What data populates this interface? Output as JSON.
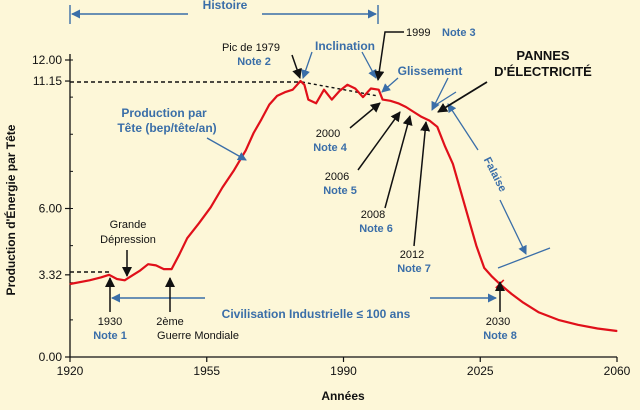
{
  "chart_data": {
    "type": "line",
    "xlabel": "Années",
    "ylabel": "Production d'Énergie par Tête",
    "xlim": [
      1920,
      2060
    ],
    "ylim": [
      0,
      12
    ],
    "x_ticks": [
      1920,
      1955,
      1990,
      2025,
      2060
    ],
    "y_ticks": [
      0,
      3.32,
      6.0,
      11.15,
      12.0
    ],
    "y_tick_labels": [
      "0.00",
      "3.32",
      "6.00",
      "11.15",
      "12.00"
    ],
    "x_tick_labels": [
      "1920",
      "1955",
      "1990",
      "2025",
      "2060"
    ],
    "colors": {
      "curve": "#e0101a",
      "annotation": "#3a6ea8",
      "background": "#fdf7d8"
    },
    "series": [
      {
        "x": [
          1920,
          1925,
          1928,
          1930,
          1932,
          1934,
          1936,
          1938,
          1940,
          1942,
          1944,
          1946,
          1948,
          1950,
          1953,
          1956,
          1959,
          1962,
          1965,
          1967,
          1969,
          1971,
          1973,
          1975,
          1977,
          1979,
          1980,
          1981,
          1983,
          1985,
          1987,
          1989,
          1991,
          1993,
          1995,
          1997,
          1999,
          2000,
          2002,
          2004,
          2006,
          2008,
          2010,
          2012,
          2014,
          2016,
          2018,
          2020,
          2022,
          2024,
          2026,
          2028,
          2030,
          2033,
          2036,
          2040,
          2045,
          2050,
          2055,
          2060
        ],
        "y": [
          2.95,
          3.1,
          3.22,
          3.32,
          3.15,
          3.1,
          3.3,
          3.5,
          3.75,
          3.7,
          3.55,
          3.55,
          4.15,
          4.8,
          5.4,
          6.05,
          6.85,
          7.55,
          8.35,
          9.05,
          9.6,
          10.2,
          10.55,
          10.7,
          10.8,
          11.15,
          11.0,
          10.4,
          10.25,
          10.8,
          10.4,
          10.75,
          11.0,
          10.85,
          10.5,
          10.85,
          10.8,
          10.4,
          10.35,
          10.25,
          10.1,
          9.9,
          9.7,
          9.55,
          9.3,
          8.5,
          7.8,
          6.7,
          5.6,
          4.5,
          3.6,
          3.25,
          2.95,
          2.55,
          2.2,
          1.8,
          1.5,
          1.3,
          1.15,
          1.05
        ]
      }
    ],
    "annotations": {
      "histoire": "Histoire",
      "inclination": "Inclination",
      "glissement": "Glissement",
      "falaise": "Falaise",
      "pannes_1": "PANNES",
      "pannes_2": "D'ÉLECTRICITÉ",
      "pic_1": "Pic de 1979",
      "pic_2": "Note 2",
      "n1999_year": "1999",
      "n1999_note": "Note 3",
      "prod_1": "Production par",
      "prod_2": "Tête (bep/tête/an)",
      "n2000_year": "2000",
      "n2000_note": "Note 4",
      "n2006_year": "2006",
      "n2006_note": "Note 5",
      "n2008_year": "2008",
      "n2008_note": "Note 6",
      "n2012_year": "2012",
      "n2012_note": "Note 7",
      "gd_1": "Grande",
      "gd_2": "Dépression",
      "civ": "Civilisation Industrielle ≤ 100 ans",
      "n1930_year": "1930",
      "n1930_note": "Note 1",
      "gm_1": "2ème",
      "gm_2": "Guerre Mondiale",
      "n2030_year": "2030",
      "n2030_note": "Note 8"
    }
  }
}
